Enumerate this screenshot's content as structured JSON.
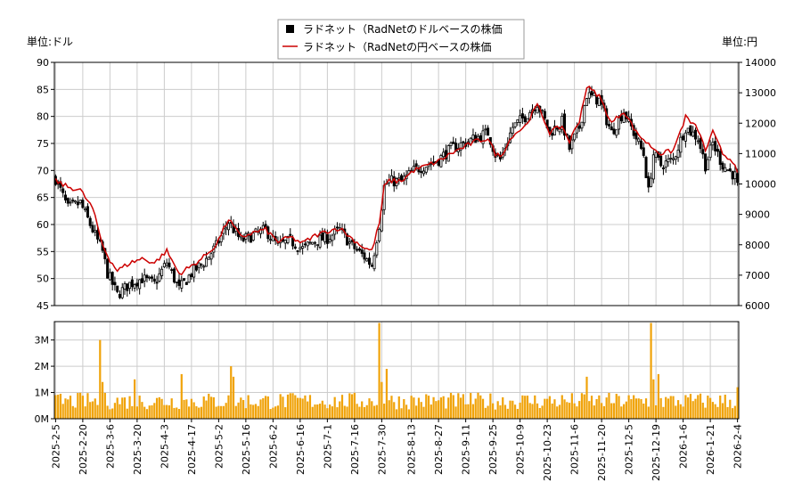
{
  "chart_data": {
    "type": "candlestick+line",
    "legend": {
      "placement": "top-center",
      "entries": [
        {
          "label": "ラドネット（RadNetのドルベースの株価",
          "marker": "square",
          "color": "#000000"
        },
        {
          "label": "ラドネット（RadNetの円ベースの株価",
          "marker": "line",
          "color": "#cc0000"
        }
      ]
    },
    "left_unit_label": "単位:ドル",
    "right_unit_label": "単位:円",
    "price_axis_left": {
      "min": 45,
      "max": 90,
      "ticks": [
        "45",
        "50",
        "55",
        "60",
        "65",
        "70",
        "75",
        "80",
        "85",
        "90"
      ]
    },
    "price_axis_right": {
      "min": 6000,
      "max": 14000,
      "ticks": [
        "6000",
        "7000",
        "8000",
        "9000",
        "10000",
        "11000",
        "12000",
        "13000",
        "14000"
      ]
    },
    "volume_axis": {
      "min": 0,
      "max": 3700000,
      "ticks": [
        "0M",
        "1M",
        "2M",
        "3M"
      ]
    },
    "x_tick_labels": [
      "2025-2-5",
      "2025-2-20",
      "2025-3-6",
      "2025-3-20",
      "2025-4-3",
      "2025-4-17",
      "2025-5-2",
      "2025-5-16",
      "2025-6-2",
      "2025-6-16",
      "2025-7-1",
      "2025-7-16",
      "2025-7-30",
      "2025-8-13",
      "2025-8-27",
      "2025-9-11",
      "2025-9-25",
      "2025-10-9",
      "2025-10-23",
      "2025-11-6",
      "2025-11-20",
      "2025-12-5",
      "2025-12-19",
      "2026-1-6",
      "2026-1-21",
      "2026-2-4"
    ],
    "grid": true,
    "colors": {
      "candle": "#000000",
      "yen_line": "#cc0000",
      "volume": "#f0a30a"
    },
    "dollar_close_anchors": [
      {
        "d": 0,
        "v": 68.5
      },
      {
        "d": 5,
        "v": 63
      },
      {
        "d": 10,
        "v": 64
      },
      {
        "d": 15,
        "v": 59
      },
      {
        "d": 19,
        "v": 55
      },
      {
        "d": 21,
        "v": 51
      },
      {
        "d": 25,
        "v": 47
      },
      {
        "d": 30,
        "v": 49
      },
      {
        "d": 35,
        "v": 50
      },
      {
        "d": 40,
        "v": 49
      },
      {
        "d": 45,
        "v": 53
      },
      {
        "d": 50,
        "v": 48
      },
      {
        "d": 55,
        "v": 51
      },
      {
        "d": 60,
        "v": 53
      },
      {
        "d": 65,
        "v": 56
      },
      {
        "d": 70,
        "v": 60.5
      },
      {
        "d": 75,
        "v": 57
      },
      {
        "d": 80,
        "v": 58
      },
      {
        "d": 85,
        "v": 59
      },
      {
        "d": 90,
        "v": 56
      },
      {
        "d": 95,
        "v": 57
      },
      {
        "d": 100,
        "v": 55.5
      },
      {
        "d": 105,
        "v": 57
      },
      {
        "d": 110,
        "v": 57.5
      },
      {
        "d": 115,
        "v": 59
      },
      {
        "d": 120,
        "v": 56
      },
      {
        "d": 125,
        "v": 54
      },
      {
        "d": 128,
        "v": 52.5
      },
      {
        "d": 131,
        "v": 60
      },
      {
        "d": 133,
        "v": 67
      },
      {
        "d": 135,
        "v": 68
      },
      {
        "d": 140,
        "v": 68
      },
      {
        "d": 145,
        "v": 70
      },
      {
        "d": 150,
        "v": 71
      },
      {
        "d": 155,
        "v": 72
      },
      {
        "d": 160,
        "v": 74
      },
      {
        "d": 165,
        "v": 75
      },
      {
        "d": 170,
        "v": 76
      },
      {
        "d": 175,
        "v": 77
      },
      {
        "d": 178,
        "v": 73
      },
      {
        "d": 180,
        "v": 72
      },
      {
        "d": 185,
        "v": 78
      },
      {
        "d": 190,
        "v": 80
      },
      {
        "d": 195,
        "v": 82.5
      },
      {
        "d": 200,
        "v": 77
      },
      {
        "d": 205,
        "v": 79
      },
      {
        "d": 208,
        "v": 74
      },
      {
        "d": 212,
        "v": 78
      },
      {
        "d": 215,
        "v": 84
      },
      {
        "d": 220,
        "v": 83
      },
      {
        "d": 225,
        "v": 77
      },
      {
        "d": 230,
        "v": 81
      },
      {
        "d": 235,
        "v": 76
      },
      {
        "d": 238,
        "v": 73
      },
      {
        "d": 240,
        "v": 66
      },
      {
        "d": 242,
        "v": 73
      },
      {
        "d": 245,
        "v": 71
      },
      {
        "d": 250,
        "v": 72
      },
      {
        "d": 255,
        "v": 78
      },
      {
        "d": 260,
        "v": 76
      },
      {
        "d": 263,
        "v": 71
      },
      {
        "d": 266,
        "v": 75
      },
      {
        "d": 270,
        "v": 71
      },
      {
        "d": 275,
        "v": 69
      },
      {
        "d": 276,
        "v": 67
      }
    ],
    "yen_line_anchors": [
      {
        "d": 0,
        "v": 10100
      },
      {
        "d": 5,
        "v": 9900
      },
      {
        "d": 10,
        "v": 9800
      },
      {
        "d": 15,
        "v": 9200
      },
      {
        "d": 19,
        "v": 8000
      },
      {
        "d": 22,
        "v": 7500
      },
      {
        "d": 25,
        "v": 7150
      },
      {
        "d": 30,
        "v": 7400
      },
      {
        "d": 35,
        "v": 7550
      },
      {
        "d": 40,
        "v": 7400
      },
      {
        "d": 45,
        "v": 7800
      },
      {
        "d": 50,
        "v": 7050
      },
      {
        "d": 55,
        "v": 7300
      },
      {
        "d": 60,
        "v": 7600
      },
      {
        "d": 65,
        "v": 8000
      },
      {
        "d": 70,
        "v": 8850
      },
      {
        "d": 75,
        "v": 8250
      },
      {
        "d": 80,
        "v": 8400
      },
      {
        "d": 85,
        "v": 8500
      },
      {
        "d": 90,
        "v": 8100
      },
      {
        "d": 95,
        "v": 8250
      },
      {
        "d": 100,
        "v": 8050
      },
      {
        "d": 105,
        "v": 8300
      },
      {
        "d": 110,
        "v": 8450
      },
      {
        "d": 115,
        "v": 8550
      },
      {
        "d": 120,
        "v": 8200
      },
      {
        "d": 125,
        "v": 7900
      },
      {
        "d": 128,
        "v": 7800
      },
      {
        "d": 131,
        "v": 8700
      },
      {
        "d": 133,
        "v": 9900
      },
      {
        "d": 135,
        "v": 10100
      },
      {
        "d": 140,
        "v": 10100
      },
      {
        "d": 145,
        "v": 10450
      },
      {
        "d": 150,
        "v": 10600
      },
      {
        "d": 155,
        "v": 10750
      },
      {
        "d": 160,
        "v": 11000
      },
      {
        "d": 165,
        "v": 11200
      },
      {
        "d": 170,
        "v": 11400
      },
      {
        "d": 175,
        "v": 11500
      },
      {
        "d": 178,
        "v": 11000
      },
      {
        "d": 180,
        "v": 10900
      },
      {
        "d": 185,
        "v": 11600
      },
      {
        "d": 190,
        "v": 11900
      },
      {
        "d": 195,
        "v": 12600
      },
      {
        "d": 200,
        "v": 11700
      },
      {
        "d": 205,
        "v": 11900
      },
      {
        "d": 208,
        "v": 11400
      },
      {
        "d": 212,
        "v": 12100
      },
      {
        "d": 215,
        "v": 13200
      },
      {
        "d": 220,
        "v": 12900
      },
      {
        "d": 225,
        "v": 12000
      },
      {
        "d": 230,
        "v": 12400
      },
      {
        "d": 235,
        "v": 11700
      },
      {
        "d": 240,
        "v": 11300
      },
      {
        "d": 245,
        "v": 11000
      },
      {
        "d": 250,
        "v": 11100
      },
      {
        "d": 255,
        "v": 12200
      },
      {
        "d": 260,
        "v": 11800
      },
      {
        "d": 263,
        "v": 11100
      },
      {
        "d": 266,
        "v": 11700
      },
      {
        "d": 270,
        "v": 11000
      },
      {
        "d": 275,
        "v": 10700
      },
      {
        "d": 276,
        "v": 10300
      }
    ],
    "volume_spikes": [
      {
        "d": 18,
        "v": 3000000
      },
      {
        "d": 19,
        "v": 1400000
      },
      {
        "d": 32,
        "v": 1500000
      },
      {
        "d": 51,
        "v": 1700000
      },
      {
        "d": 71,
        "v": 2000000
      },
      {
        "d": 72,
        "v": 1600000
      },
      {
        "d": 131,
        "v": 3650000
      },
      {
        "d": 132,
        "v": 1400000
      },
      {
        "d": 134,
        "v": 1900000
      },
      {
        "d": 215,
        "v": 1600000
      },
      {
        "d": 241,
        "v": 3650000
      },
      {
        "d": 244,
        "v": 1700000
      },
      {
        "d": 242,
        "v": 1500000
      },
      {
        "d": 276,
        "v": 1200000
      }
    ],
    "n_days": 277
  }
}
